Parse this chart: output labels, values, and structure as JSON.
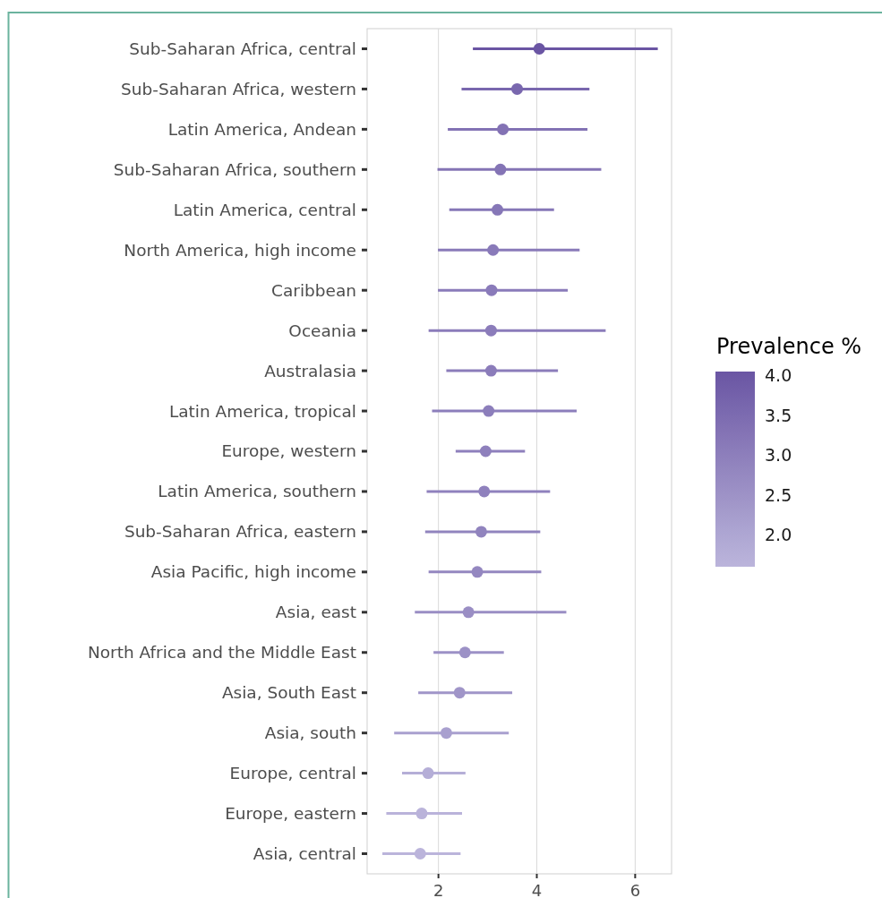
{
  "chart_data": {
    "type": "scatter",
    "orientation": "horizontal",
    "marker": "circle",
    "grid": "x",
    "clabel": "Prevalence %",
    "categories": [
      "Sub-Saharan Africa, central",
      "Sub-Saharan Africa, western",
      "Latin America, Andean",
      "Sub-Saharan Africa, southern",
      "Latin America, central",
      "North America, high income",
      "Caribbean",
      "Oceania",
      "Australasia",
      "Latin America, tropical",
      "Europe, western",
      "Latin America, southern",
      "Sub-Saharan Africa, eastern",
      "Asia Pacific, high income",
      "Asia, east",
      "North Africa and the Middle East",
      "Asia, South East",
      "Asia, south",
      "Europe, central",
      "Europe, eastern",
      "Asia, central"
    ],
    "values": [
      4.05,
      3.6,
      3.31,
      3.26,
      3.2,
      3.11,
      3.08,
      3.07,
      3.07,
      3.02,
      2.96,
      2.93,
      2.87,
      2.79,
      2.61,
      2.54,
      2.43,
      2.16,
      1.79,
      1.66,
      1.63
    ],
    "cvalues": [
      4.05,
      3.6,
      3.31,
      3.26,
      3.2,
      3.11,
      3.08,
      3.07,
      3.07,
      3.02,
      2.96,
      2.93,
      2.87,
      2.79,
      2.61,
      2.54,
      2.43,
      2.16,
      1.79,
      1.66,
      1.63
    ],
    "errors": [
      [
        2.7,
        6.46
      ],
      [
        2.47,
        5.07
      ],
      [
        2.19,
        5.03
      ],
      [
        1.98,
        5.31
      ],
      [
        2.22,
        4.35
      ],
      [
        1.99,
        4.87
      ],
      [
        1.99,
        4.63
      ],
      [
        1.8,
        5.4
      ],
      [
        2.16,
        4.43
      ],
      [
        1.87,
        4.81
      ],
      [
        2.35,
        3.76
      ],
      [
        1.76,
        4.27
      ],
      [
        1.73,
        4.07
      ],
      [
        1.8,
        4.09
      ],
      [
        1.52,
        4.6
      ],
      [
        1.9,
        3.33
      ],
      [
        1.59,
        3.5
      ],
      [
        1.1,
        3.43
      ],
      [
        1.26,
        2.55
      ],
      [
        0.94,
        2.48
      ],
      [
        0.86,
        2.45
      ]
    ],
    "colors": [
      "#6a55a3",
      "#7967ae",
      "#8372b4",
      "#8474b5",
      "#8677b7",
      "#897ab9",
      "#8a7bba",
      "#8b7cba",
      "#8b7cba",
      "#8c7ebb",
      "#8e80bc",
      "#8f81bd",
      "#9184be",
      "#9487c0",
      "#9a8ec4",
      "#9c91c6",
      "#a095c8",
      "#a9a0cf",
      "#b5aed7",
      "#bab3da",
      "#bbb4db"
    ],
    "xlim": [
      0.55,
      6.74
    ],
    "xticks": [
      2,
      4,
      6
    ],
    "clim": [
      1.6,
      4.05
    ],
    "cticks": [
      {
        "value": 2,
        "label": "2.0"
      },
      {
        "value": 2.5,
        "label": "2.5"
      },
      {
        "value": 3,
        "label": "3.0"
      },
      {
        "value": 3.5,
        "label": "3.5"
      },
      {
        "value": 4,
        "label": "4.0"
      }
    ]
  }
}
